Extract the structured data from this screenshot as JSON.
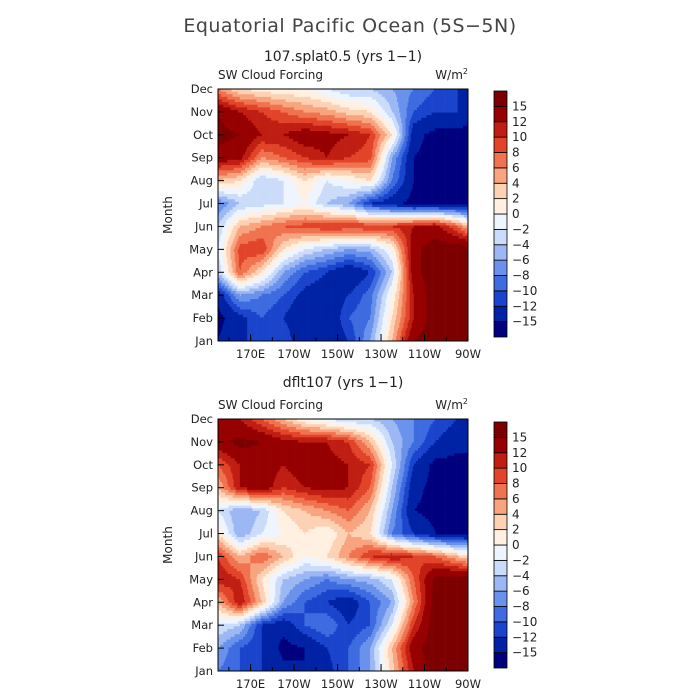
{
  "title": "Equatorial Pacific Ocean (5S−5N)",
  "colors": {
    "levels": [
      "#00007e",
      "#0022a4",
      "#1a44cc",
      "#3e6ce0",
      "#6a92ec",
      "#9cb8f4",
      "#cbdcfa",
      "#eef5fe",
      "#fff0e2",
      "#fdd1b4",
      "#f8a47f",
      "#f07350",
      "#e2442a",
      "#c01e12",
      "#960000",
      "#7d0000"
    ]
  },
  "chart_data": [
    {
      "type": "heatmap",
      "subtitle": "107.splat0.5 (yrs 1−1)",
      "field_label": "SW Cloud Forcing",
      "units_label": "W/m",
      "units_sup": "2",
      "ylabel": "Month",
      "xlim": [
        155,
        270
      ],
      "x_ticks": [
        170,
        190,
        210,
        230,
        250,
        270
      ],
      "x_tick_labels": [
        "170E",
        "170W",
        "150W",
        "130W",
        "110W",
        "90W"
      ],
      "y_tick_labels": [
        "Jan",
        "Feb",
        "Mar",
        "Apr",
        "May",
        "Jun",
        "Jul",
        "Aug",
        "Sep",
        "Oct",
        "Nov",
        "Dec"
      ],
      "colorbar_levels": [
        -15,
        -12,
        -10,
        -8,
        -6,
        -4,
        -2,
        0,
        2,
        4,
        6,
        8,
        10,
        12,
        15
      ],
      "colorbar_labels": [
        "15",
        "12",
        "10",
        "8",
        "6",
        "4",
        "2",
        "0",
        "−2",
        "−4",
        "−6",
        "−8",
        "−10",
        "−12",
        "−15"
      ],
      "x": [
        155,
        165,
        175,
        185,
        195,
        205,
        215,
        225,
        235,
        245,
        255,
        265,
        270
      ],
      "values": [
        [
          -15,
          -12,
          -12,
          -10,
          -15,
          -15,
          -12,
          -6,
          4,
          15,
          17,
          17,
          17
        ],
        [
          -16,
          -13,
          -10,
          -12,
          -15,
          -15,
          -10,
          -8,
          2,
          12,
          17,
          17,
          17
        ],
        [
          -14,
          -6,
          -8,
          -10,
          -13,
          -14,
          -12,
          -9,
          0,
          12,
          17,
          17,
          17
        ],
        [
          -4,
          8,
          2,
          -6,
          -10,
          -12,
          -15,
          -12,
          -4,
          14,
          17,
          17,
          17
        ],
        [
          -2,
          9,
          10,
          2,
          -2,
          -4,
          -6,
          -5,
          0,
          14,
          17,
          17,
          17
        ],
        [
          -4,
          4,
          6,
          8,
          9,
          10,
          10,
          10,
          10,
          12,
          13,
          8,
          4
        ],
        [
          -8,
          -4,
          -3,
          -2,
          0,
          -4,
          -6,
          -12,
          -14,
          -16,
          -16,
          -16,
          -16
        ],
        [
          4,
          2,
          -4,
          -2,
          2,
          -2,
          0,
          2,
          -8,
          -15,
          -16,
          -16,
          -16
        ],
        [
          14,
          13,
          6,
          8,
          10,
          12,
          10,
          9,
          -6,
          -15,
          -16,
          -16,
          -16
        ],
        [
          16,
          15,
          12,
          12,
          14,
          13,
          12,
          10,
          2,
          -14,
          -16,
          -16,
          -16
        ],
        [
          15,
          12,
          10,
          8,
          6,
          5,
          3,
          2,
          -4,
          -10,
          -12,
          -12,
          -14
        ],
        [
          6,
          2,
          1,
          0,
          0,
          -2,
          -4,
          -4,
          -6,
          -8,
          -10,
          -12,
          -14
        ]
      ]
    },
    {
      "type": "heatmap",
      "subtitle": "dflt107 (yrs 1−1)",
      "field_label": "SW Cloud Forcing",
      "units_label": "W/m",
      "units_sup": "2",
      "ylabel": "Month",
      "xlim": [
        155,
        270
      ],
      "x_ticks": [
        170,
        190,
        210,
        230,
        250,
        270
      ],
      "x_tick_labels": [
        "170E",
        "170W",
        "150W",
        "130W",
        "110W",
        "90W"
      ],
      "y_tick_labels": [
        "Jan",
        "Feb",
        "Mar",
        "Apr",
        "May",
        "Jun",
        "Jul",
        "Aug",
        "Sep",
        "Oct",
        "Nov",
        "Dec"
      ],
      "colorbar_levels": [
        -15,
        -12,
        -10,
        -8,
        -6,
        -4,
        -2,
        0,
        2,
        4,
        6,
        8,
        10,
        12,
        15
      ],
      "colorbar_labels": [
        "15",
        "12",
        "10",
        "8",
        "6",
        "4",
        "2",
        "0",
        "−2",
        "−4",
        "−6",
        "−8",
        "−10",
        "−12",
        "−15"
      ],
      "x": [
        155,
        165,
        175,
        185,
        195,
        205,
        215,
        225,
        235,
        245,
        255,
        265,
        270
      ],
      "values": [
        [
          -8,
          -10,
          -12,
          -14,
          -15,
          -13,
          -10,
          -6,
          3,
          12,
          17,
          17,
          17
        ],
        [
          -6,
          -10,
          -12,
          -16,
          -15,
          -12,
          -10,
          -6,
          4,
          14,
          17,
          17,
          17
        ],
        [
          -2,
          -4,
          -12,
          -14,
          -10,
          -8,
          -12,
          -10,
          -2,
          10,
          17,
          17,
          17
        ],
        [
          4,
          12,
          4,
          -6,
          -10,
          -12,
          -14,
          -10,
          -6,
          6,
          17,
          17,
          17
        ],
        [
          12,
          10,
          2,
          -4,
          -6,
          -8,
          -6,
          -5,
          -2,
          8,
          16,
          17,
          17
        ],
        [
          10,
          4,
          8,
          4,
          0,
          2,
          6,
          10,
          12,
          10,
          8,
          4,
          2
        ],
        [
          2,
          -6,
          -2,
          0,
          2,
          0,
          4,
          2,
          -8,
          -12,
          -15,
          -16,
          -16
        ],
        [
          -2,
          -6,
          -4,
          2,
          4,
          6,
          8,
          4,
          -6,
          -15,
          -16,
          -16,
          -16
        ],
        [
          4,
          12,
          14,
          10,
          12,
          13,
          12,
          8,
          -4,
          -14,
          -16,
          -16,
          -16
        ],
        [
          8,
          12,
          14,
          12,
          14,
          13,
          12,
          10,
          -2,
          -12,
          -16,
          -16,
          -16
        ],
        [
          14,
          16,
          15,
          13,
          12,
          12,
          10,
          4,
          -4,
          -8,
          -12,
          -14,
          -14
        ],
        [
          14,
          12,
          8,
          4,
          0,
          -2,
          -4,
          -4,
          -6,
          -8,
          -10,
          -12,
          -14
        ]
      ]
    }
  ]
}
